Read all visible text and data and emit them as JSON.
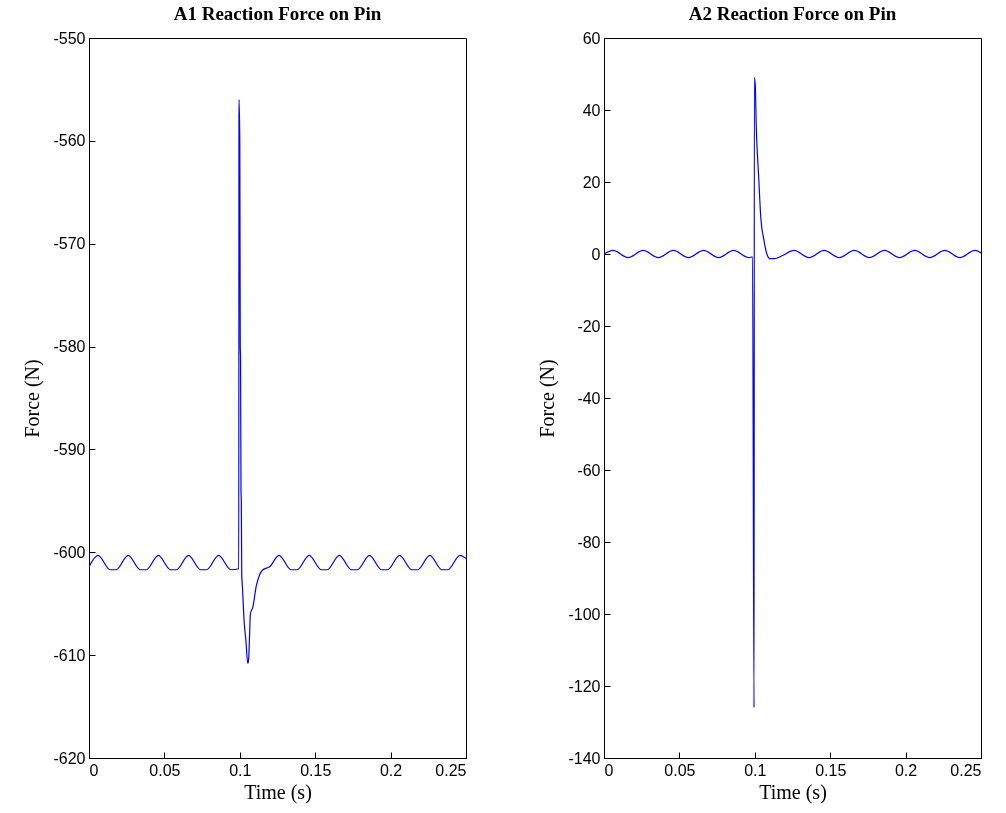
{
  "chart_data": [
    {
      "type": "line",
      "title": "A1 Reaction Force on Pin",
      "xlabel": "Time (s)",
      "ylabel": "Force (N)",
      "color": "#0000ff",
      "x": [
        0,
        0.006,
        0.014,
        0.018,
        0.026,
        0.034,
        0.038,
        0.046,
        0.054,
        0.058,
        0.066,
        0.074,
        0.078,
        0.086,
        0.094,
        0.0993,
        0.0995,
        0.1,
        0.1003,
        0.1005,
        0.1008,
        0.101,
        0.1013,
        0.1016,
        0.103,
        0.104,
        0.1053,
        0.1058,
        0.1065,
        0.107,
        0.1087,
        0.1109,
        0.1131,
        0.1153,
        0.1198,
        0.126,
        0.134,
        0.138,
        0.146,
        0.154,
        0.158,
        0.166,
        0.174,
        0.178,
        0.186,
        0.194,
        0.198,
        0.206,
        0.214,
        0.218,
        0.226,
        0.234,
        0.238,
        0.246,
        0.25
      ],
      "values": [
        -601.4,
        -600.3,
        -601.7,
        -601.7,
        -600.3,
        -601.7,
        -601.7,
        -600.3,
        -601.7,
        -601.7,
        -600.3,
        -601.7,
        -601.7,
        -600.3,
        -601.7,
        -601.6,
        -556,
        -560,
        -580,
        -581,
        -594,
        -595,
        -602.3,
        -603,
        -607,
        -608.5,
        -610.8,
        -610.5,
        -608,
        -606,
        -605.3,
        -603.3,
        -602.2,
        -601.7,
        -601.4,
        -600.3,
        -601.7,
        -601.7,
        -600.3,
        -601.7,
        -601.7,
        -600.3,
        -601.7,
        -601.7,
        -600.3,
        -601.7,
        -601.7,
        -600.3,
        -601.7,
        -601.7,
        -600.3,
        -601.7,
        -601.7,
        -600.3,
        -600.6
      ],
      "xlim": [
        0,
        0.25
      ],
      "xticks": [
        0,
        0.05,
        0.1,
        0.15,
        0.2,
        0.25
      ],
      "ylim": [
        -620,
        -550
      ],
      "yticks": [
        -620,
        -610,
        -600,
        -590,
        -580,
        -570,
        -560,
        -550
      ]
    },
    {
      "type": "line",
      "title": "A2 Reaction Force on Pin",
      "xlabel": "Time (s)",
      "ylabel": "Force (N)",
      "color": "#0000ff",
      "x": [
        0,
        0.006,
        0.016,
        0.026,
        0.036,
        0.046,
        0.056,
        0.066,
        0.076,
        0.086,
        0.096,
        0.0985,
        0.0995,
        0.0997,
        0.1003,
        0.101,
        0.1025,
        0.104,
        0.106,
        0.108,
        0.11,
        0.113,
        0.118,
        0.126,
        0.136,
        0.146,
        0.156,
        0.166,
        0.176,
        0.186,
        0.196,
        0.206,
        0.216,
        0.226,
        0.236,
        0.246,
        0.25
      ],
      "values": [
        0,
        1,
        -1,
        1,
        -1,
        1,
        -1,
        1,
        -1,
        1,
        -1,
        -0.8,
        -126,
        49,
        47,
        35,
        22,
        10,
        4,
        0,
        -1.3,
        -1.3,
        -0.5,
        1,
        -1,
        1,
        -1,
        1,
        -1,
        1,
        -1,
        1,
        -1,
        1,
        -1,
        1,
        0.3
      ],
      "xlim": [
        0,
        0.25
      ],
      "xticks": [
        0,
        0.05,
        0.1,
        0.15,
        0.2,
        0.25
      ],
      "ylim": [
        -140,
        60
      ],
      "yticks": [
        -140,
        -120,
        -100,
        -80,
        -60,
        -40,
        -20,
        0,
        20,
        40,
        60
      ]
    }
  ]
}
